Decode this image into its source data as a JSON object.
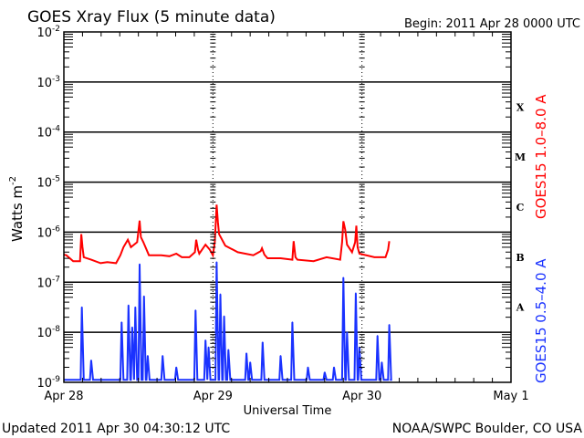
{
  "chart_data": {
    "type": "line",
    "title": "GOES Xray Flux (5 minute data)",
    "begin_label": "Begin:  2011 Apr 28 0000 UTC",
    "xlabel": "Universal Time",
    "ylabel": "Watts m",
    "ylabel_exp": "-2",
    "yscale": "log",
    "ylim_exp": [
      -9,
      -2
    ],
    "xlim_hours": [
      0,
      72
    ],
    "x_ticks": [
      {
        "hours": 0,
        "label": "Apr 28"
      },
      {
        "hours": 24,
        "label": "Apr 29"
      },
      {
        "hours": 48,
        "label": "Apr 30"
      },
      {
        "hours": 72,
        "label": "May 1"
      }
    ],
    "y_ticks": [
      {
        "exp": -2,
        "base": "10",
        "sup": "-2"
      },
      {
        "exp": -3,
        "base": "10",
        "sup": "-3"
      },
      {
        "exp": -4,
        "base": "10",
        "sup": "-4"
      },
      {
        "exp": -5,
        "base": "10",
        "sup": "-5"
      },
      {
        "exp": -6,
        "base": "10",
        "sup": "-6"
      },
      {
        "exp": -7,
        "base": "10",
        "sup": "-7"
      },
      {
        "exp": -8,
        "base": "10",
        "sup": "-8"
      },
      {
        "exp": -9,
        "base": "10",
        "sup": "-9"
      }
    ],
    "flare_classes": [
      {
        "label": "X",
        "exp": -3.5
      },
      {
        "label": "M",
        "exp": -4.5
      },
      {
        "label": "C",
        "exp": -5.5
      },
      {
        "label": "B",
        "exp": -6.5
      },
      {
        "label": "A",
        "exp": -7.5
      }
    ],
    "series": [
      {
        "name": "GOES15 1.0–8.0 A",
        "color": "#ff0000",
        "points_hours_log10flux": [
          [
            0,
            -6.45
          ],
          [
            0.4,
            -6.46
          ],
          [
            1.5,
            -6.58
          ],
          [
            2.6,
            -6.58
          ],
          [
            2.8,
            -6.04
          ],
          [
            3.0,
            -6.3
          ],
          [
            3.2,
            -6.5
          ],
          [
            4.4,
            -6.55
          ],
          [
            5.9,
            -6.62
          ],
          [
            7,
            -6.6
          ],
          [
            8.4,
            -6.62
          ],
          [
            9.1,
            -6.46
          ],
          [
            9.6,
            -6.3
          ],
          [
            10.3,
            -6.15
          ],
          [
            10.8,
            -6.3
          ],
          [
            11.3,
            -6.25
          ],
          [
            11.8,
            -6.2
          ],
          [
            12.2,
            -5.77
          ],
          [
            12.4,
            -6.1
          ],
          [
            12.8,
            -6.2
          ],
          [
            13.7,
            -6.46
          ],
          [
            15.7,
            -6.46
          ],
          [
            17,
            -6.48
          ],
          [
            18.1,
            -6.43
          ],
          [
            19,
            -6.5
          ],
          [
            20.2,
            -6.5
          ],
          [
            21.1,
            -6.4
          ],
          [
            21.3,
            -6.15
          ],
          [
            21.6,
            -6.35
          ],
          [
            21.8,
            -6.43
          ],
          [
            22.8,
            -6.25
          ],
          [
            23.5,
            -6.35
          ],
          [
            24,
            -6.46
          ],
          [
            24.3,
            -6.2
          ],
          [
            24.6,
            -5.45
          ],
          [
            24.8,
            -5.8
          ],
          [
            25,
            -6.04
          ],
          [
            26,
            -6.27
          ],
          [
            28,
            -6.4
          ],
          [
            30.5,
            -6.46
          ],
          [
            31.7,
            -6.38
          ],
          [
            31.9,
            -6.32
          ],
          [
            32.3,
            -6.45
          ],
          [
            32.8,
            -6.52
          ],
          [
            34.9,
            -6.52
          ],
          [
            36.8,
            -6.55
          ],
          [
            37.0,
            -6.18
          ],
          [
            37.3,
            -6.5
          ],
          [
            37.6,
            -6.55
          ],
          [
            40.2,
            -6.58
          ],
          [
            42.3,
            -6.5
          ],
          [
            44.5,
            -6.55
          ],
          [
            44.8,
            -6.2
          ],
          [
            45.0,
            -5.78
          ],
          [
            45.3,
            -5.95
          ],
          [
            45.6,
            -6.25
          ],
          [
            46.4,
            -6.4
          ],
          [
            46.9,
            -6.2
          ],
          [
            47.1,
            -5.87
          ],
          [
            47.3,
            -6.3
          ],
          [
            47.6,
            -6.43
          ],
          [
            50,
            -6.5
          ],
          [
            51.8,
            -6.5
          ],
          [
            52.2,
            -6.35
          ],
          [
            52.4,
            -6.18
          ]
        ]
      },
      {
        "name": "GOES15 0.5–4.0 A",
        "color": "#1a32ff",
        "baseline_log10flux": -8.95,
        "spikes_hours_log10flux": [
          [
            2.9,
            -7.5
          ],
          [
            4.4,
            -8.56
          ],
          [
            9.3,
            -7.8
          ],
          [
            10.4,
            -7.46
          ],
          [
            11.0,
            -7.9
          ],
          [
            11.5,
            -7.5
          ],
          [
            12.2,
            -6.64
          ],
          [
            12.9,
            -7.28
          ],
          [
            13.5,
            -8.47
          ],
          [
            15.9,
            -8.47
          ],
          [
            18.1,
            -8.7
          ],
          [
            21.2,
            -7.56
          ],
          [
            22.8,
            -8.16
          ],
          [
            23.3,
            -8.3
          ],
          [
            24.6,
            -6.6
          ],
          [
            25.2,
            -7.24
          ],
          [
            25.8,
            -7.68
          ],
          [
            26.5,
            -8.35
          ],
          [
            29.4,
            -8.42
          ],
          [
            30.0,
            -8.6
          ],
          [
            32.0,
            -8.2
          ],
          [
            34.9,
            -8.47
          ],
          [
            36.8,
            -7.8
          ],
          [
            39.3,
            -8.7
          ],
          [
            42.0,
            -8.8
          ],
          [
            43.5,
            -8.7
          ],
          [
            45.0,
            -6.91
          ],
          [
            45.6,
            -8.0
          ],
          [
            47.0,
            -7.22
          ],
          [
            47.6,
            -8.3
          ],
          [
            50.5,
            -8.07
          ],
          [
            51.2,
            -8.6
          ],
          [
            52.4,
            -7.85
          ]
        ]
      }
    ]
  },
  "footer": {
    "updated": "Updated 2011 Apr 30 04:30:12 UTC",
    "source": "NOAA/SWPC Boulder, CO USA"
  }
}
